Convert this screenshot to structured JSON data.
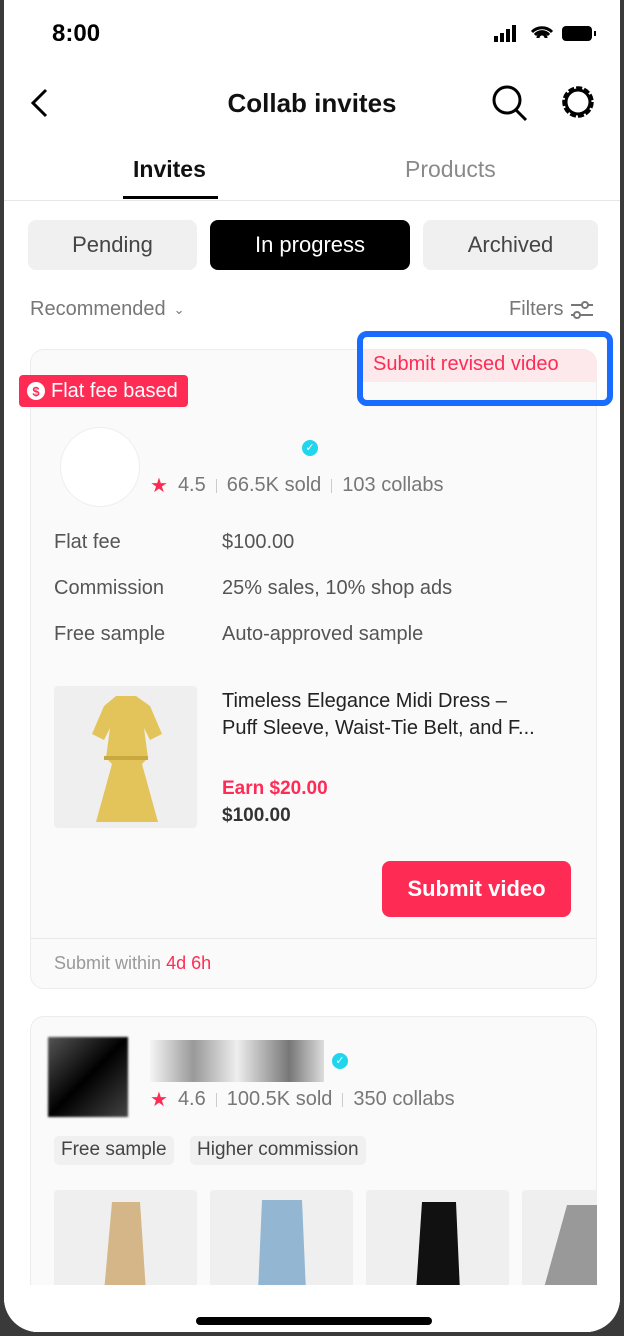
{
  "status": {
    "time": "8:00"
  },
  "header": {
    "title": "Collab invites"
  },
  "tabs": [
    {
      "label": "Invites",
      "active": true
    },
    {
      "label": "Products",
      "active": false
    }
  ],
  "chips": [
    {
      "label": "Pending"
    },
    {
      "label": "In progress",
      "active": true
    },
    {
      "label": "Archived"
    }
  ],
  "sort": {
    "label": "Recommended",
    "filters": "Filters"
  },
  "colors": {
    "accent": "#fe2c55",
    "highlight": "#1a6cff",
    "verified": "#20d5ec"
  },
  "card1": {
    "status_badge": "Submit revised video",
    "type_badge": "Flat fee based",
    "rating": "4.5",
    "sold": "66.5K sold",
    "collabs": "103 collabs",
    "rows": [
      {
        "label": "Flat fee",
        "value": "$100.00"
      },
      {
        "label": "Commission",
        "value": "25% sales, 10% shop ads"
      },
      {
        "label": "Free sample",
        "value": "Auto-approved sample"
      }
    ],
    "product": {
      "title_line1": "Timeless Elegance Midi Dress –",
      "title_line2": "Puff Sleeve, Waist-Tie Belt, and F...",
      "earn": "Earn $20.00",
      "price": "$100.00"
    },
    "button": "Submit video",
    "footer_prefix": "Submit within",
    "footer_time": "4d 6h"
  },
  "card2": {
    "rating": "4.6",
    "sold": "100.5K sold",
    "collabs": "350 collabs",
    "tags": [
      "Free sample",
      "Higher commission"
    ]
  }
}
